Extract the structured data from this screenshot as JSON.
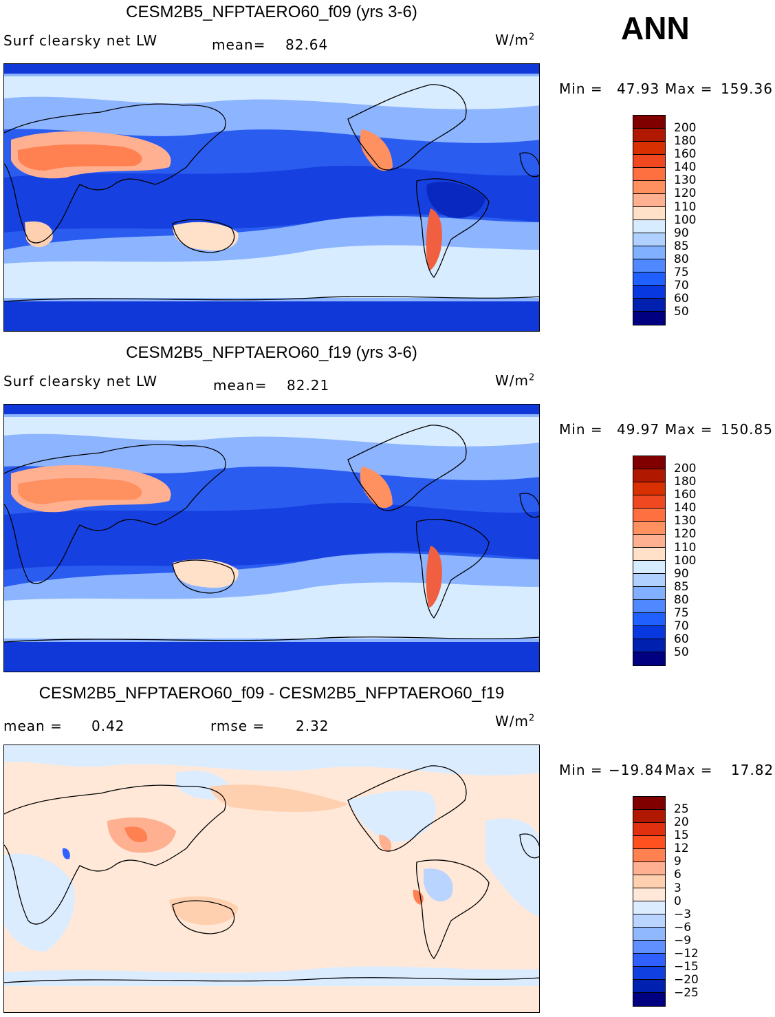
{
  "season": "ANN",
  "panels": [
    {
      "title": "CESM2B5_NFPTAERO60_f09 (yrs 3-6)",
      "variable": "Surf clearsky net LW",
      "stat1_label": "mean=",
      "stat1_value": "82.64",
      "units_base": "W/m",
      "units_exp": "2",
      "min_label": "Min =",
      "min_value": "47.93",
      "max_label": "Max =",
      "max_value": "159.36",
      "colorbar_levels": [
        "200",
        "180",
        "160",
        "140",
        "130",
        "120",
        "110",
        "100",
        "90",
        "85",
        "80",
        "75",
        "70",
        "60",
        "50"
      ]
    },
    {
      "title": "CESM2B5_NFPTAERO60_f19 (yrs 3-6)",
      "variable": "Surf clearsky net LW",
      "stat1_label": "mean=",
      "stat1_value": "82.21",
      "units_base": "W/m",
      "units_exp": "2",
      "min_label": "Min =",
      "min_value": "49.97",
      "max_label": "Max =",
      "max_value": "150.85",
      "colorbar_levels": [
        "200",
        "180",
        "160",
        "140",
        "130",
        "120",
        "110",
        "100",
        "90",
        "85",
        "80",
        "75",
        "70",
        "60",
        "50"
      ]
    },
    {
      "title": "CESM2B5_NFPTAERO60_f09 - CESM2B5_NFPTAERO60_f19",
      "stat1_label": "mean =",
      "stat1_value": "0.42",
      "stat2_label": "rmse =",
      "stat2_value": "2.32",
      "units_base": "W/m",
      "units_exp": "2",
      "min_label": "Min =",
      "min_value": "−19.84",
      "max_label": "Max =",
      "max_value": "17.82",
      "colorbar_levels": [
        "25",
        "20",
        "15",
        "12",
        "9",
        "6",
        "3",
        "0",
        "−3",
        "−6",
        "−9",
        "−12",
        "−15",
        "−20",
        "−25"
      ]
    }
  ],
  "colors": {
    "abs_scale": [
      "#800000",
      "#b01800",
      "#d83000",
      "#f04820",
      "#ff7040",
      "#ff9060",
      "#ffb090",
      "#ffe0c8",
      "#d8ecff",
      "#b0d0ff",
      "#80b0ff",
      "#5088ff",
      "#2060ff",
      "#0838e0",
      "#0020b0",
      "#000080"
    ],
    "diff_scale": [
      "#800000",
      "#b01800",
      "#e03010",
      "#ff5020",
      "#ff8050",
      "#ffb090",
      "#ffd0b0",
      "#ffe8d8",
      "#dcecff",
      "#b8d4ff",
      "#90b8ff",
      "#6090ff",
      "#3060ff",
      "#1040e0",
      "#0020b0",
      "#000080"
    ],
    "ocean_blue": "#1848e8",
    "mid_blue": "#8cb4ff",
    "pale_blue": "#d8ecff",
    "pale_orange": "#ffe4cc",
    "orange": "#ff9868",
    "deep_orange": "#f06040"
  }
}
